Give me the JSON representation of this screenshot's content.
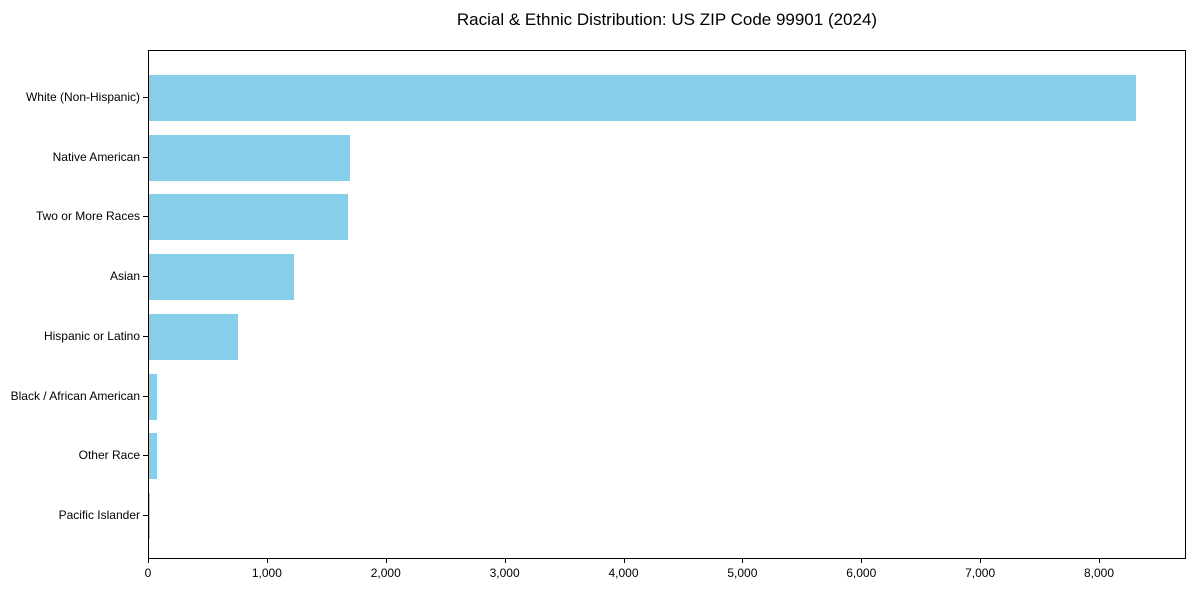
{
  "title": "Racial & Ethnic Distribution: US ZIP Code 99901 (2024)",
  "chart_data": {
    "type": "bar",
    "orientation": "horizontal",
    "title": "Racial & Ethnic Distribution: US ZIP Code 99901 (2024)",
    "xlabel": "",
    "ylabel": "",
    "categories": [
      "White (Non-Hispanic)",
      "Native American",
      "Two or More Races",
      "Asian",
      "Hispanic or Latino",
      "Black / African American",
      "Other Race",
      "Pacific Islander"
    ],
    "values": [
      8300,
      1690,
      1670,
      1220,
      750,
      70,
      70,
      10
    ],
    "xlim": [
      0,
      8715
    ],
    "xticks": [
      0,
      1000,
      2000,
      3000,
      4000,
      5000,
      6000,
      7000,
      8000
    ],
    "xtick_labels": [
      "0",
      "1,000",
      "2,000",
      "3,000",
      "4,000",
      "5,000",
      "6,000",
      "7,000",
      "8,000"
    ],
    "bar_color": "#87CEEB",
    "grid": false,
    "legend": null,
    "plot_border_color": "#000000",
    "background_color": "#ffffff"
  }
}
